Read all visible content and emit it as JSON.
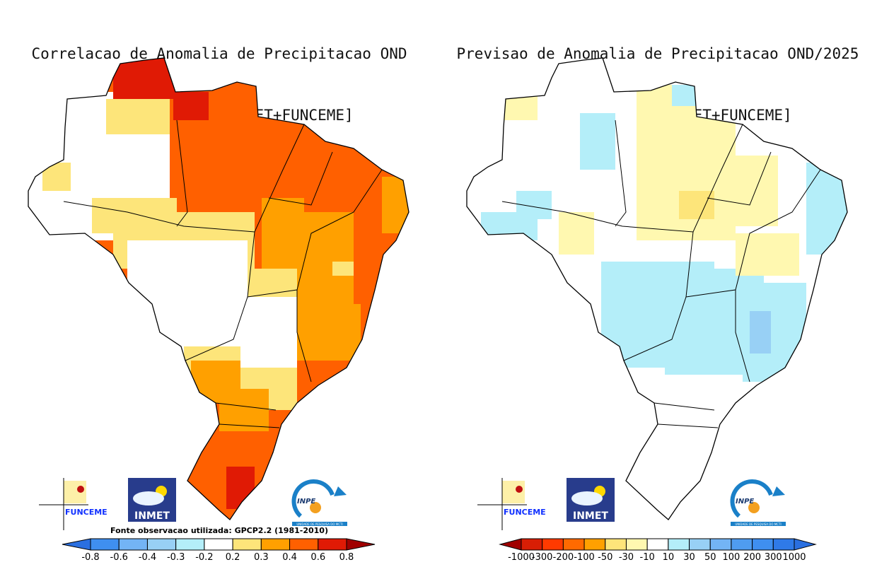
{
  "left_panel": {
    "title_line1": "Correlacao de Anomalia de Precipitacao OND",
    "title_line2": "media [CPTEC1.2+INMET+FUNCEME]",
    "source_note": "Fonte observacao utilizada: GPCP2.2 (1981-2010)",
    "colorbar": {
      "labels": [
        "-0.8",
        "-0.6",
        "-0.4",
        "-0.3",
        "-0.2",
        "0.2",
        "0.3",
        "0.4",
        "0.6",
        "0.8"
      ],
      "colors": [
        "#2a6fe0",
        "#3f8ff0",
        "#73b4f5",
        "#98d0f5",
        "#b4eef9",
        "#ffffff",
        "#fde57a",
        "#ffa000",
        "#ff6000",
        "#e01a05",
        "#a00000"
      ]
    }
  },
  "right_panel": {
    "title_line1": "Previsao de Anomalia de Precipitacao OND/2025",
    "title_line2": "media [CPTEC1.2+INMET+FUNCEME]",
    "colorbar": {
      "labels": [
        "-1000",
        "-300",
        "-200",
        "-100",
        "-50",
        "-30",
        "-10",
        "10",
        "30",
        "50",
        "100",
        "200",
        "300",
        "1000"
      ],
      "colors": [
        "#a00000",
        "#d81e05",
        "#ff3a00",
        "#ff6a00",
        "#ffa000",
        "#fde57a",
        "#fff8b0",
        "#ffffff",
        "#b4eef9",
        "#98d0f5",
        "#73b4f5",
        "#4f9cf0",
        "#3f8ff0",
        "#2f7ae8",
        "#2a6fe0"
      ]
    }
  },
  "logos": {
    "funceme": "FUNCEME",
    "inmet": "INMET",
    "inpe": "INPE",
    "inpe_sub": "UNIDADE DE PESQUISA DO MCTI"
  }
}
